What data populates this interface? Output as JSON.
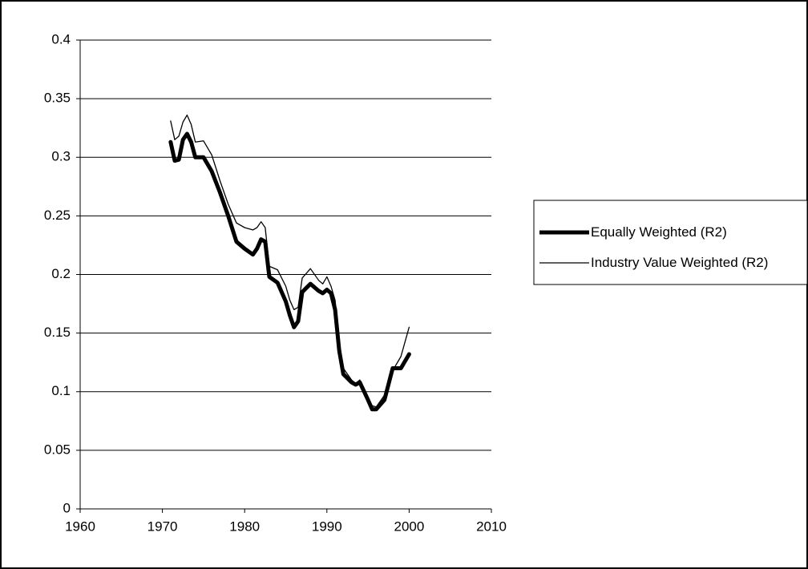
{
  "chart_data": {
    "type": "line",
    "x": [
      1971,
      1971.5,
      1972,
      1972.5,
      1973,
      1973.5,
      1974,
      1975,
      1976,
      1977,
      1978,
      1979,
      1980,
      1981,
      1981.5,
      1982,
      1982.5,
      1983,
      1984,
      1985,
      1985.5,
      1986,
      1986.5,
      1987,
      1988,
      1989,
      1989.5,
      1990,
      1990.5,
      1991,
      1991.5,
      1992,
      1993,
      1993.5,
      1994,
      1995,
      1995.5,
      1996,
      1997,
      1998,
      1999,
      2000
    ],
    "series": [
      {
        "name": "Equally Weighted (R2)",
        "color": "#000000",
        "values": [
          0.313,
          0.297,
          0.298,
          0.315,
          0.32,
          0.313,
          0.3,
          0.3,
          0.288,
          0.27,
          0.25,
          0.228,
          0.222,
          0.217,
          0.222,
          0.23,
          0.228,
          0.198,
          0.193,
          0.177,
          0.165,
          0.155,
          0.16,
          0.185,
          0.192,
          0.186,
          0.184,
          0.187,
          0.184,
          0.17,
          0.135,
          0.115,
          0.108,
          0.106,
          0.108,
          0.093,
          0.085,
          0.085,
          0.093,
          0.12,
          0.12,
          0.132
        ]
      },
      {
        "name": "Industry Value Weighted (R2)",
        "color": "#000000",
        "values": [
          0.331,
          0.315,
          0.318,
          0.33,
          0.336,
          0.328,
          0.313,
          0.314,
          0.302,
          0.28,
          0.26,
          0.244,
          0.24,
          0.238,
          0.24,
          0.245,
          0.24,
          0.207,
          0.204,
          0.19,
          0.178,
          0.17,
          0.172,
          0.197,
          0.205,
          0.195,
          0.192,
          0.198,
          0.19,
          0.178,
          0.143,
          0.12,
          0.11,
          0.107,
          0.11,
          0.095,
          0.088,
          0.087,
          0.097,
          0.118,
          0.13,
          0.155
        ]
      }
    ],
    "xlim": [
      1960,
      2010
    ],
    "xticks": [
      1960,
      1970,
      1980,
      1990,
      2000,
      2010
    ],
    "ylim": [
      0,
      0.4
    ],
    "yticks": [
      0,
      0.05,
      0.1,
      0.15,
      0.2,
      0.25,
      0.3,
      0.35,
      0.4
    ],
    "grid": true,
    "legend": "right"
  }
}
